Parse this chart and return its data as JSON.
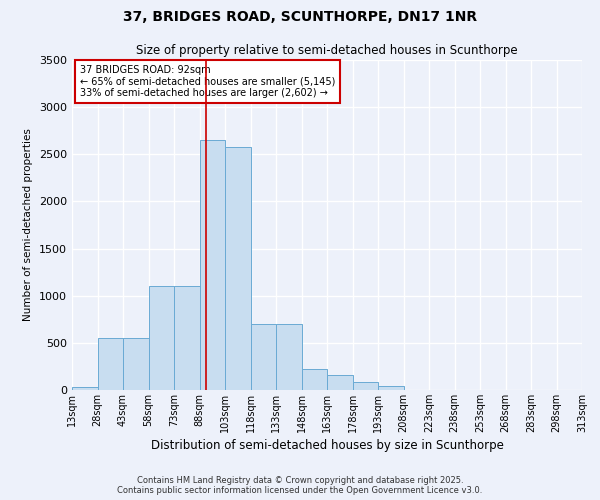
{
  "title1": "37, BRIDGES ROAD, SCUNTHORPE, DN17 1NR",
  "title2": "Size of property relative to semi-detached houses in Scunthorpe",
  "xlabel": "Distribution of semi-detached houses by size in Scunthorpe",
  "ylabel": "Number of semi-detached properties",
  "annotation_line1": "37 BRIDGES ROAD: 92sqm",
  "annotation_line2": "← 65% of semi-detached houses are smaller (5,145)",
  "annotation_line3": "33% of semi-detached houses are larger (2,602) →",
  "property_size_x": 92,
  "bin_labels": [
    "13sqm",
    "28sqm",
    "43sqm",
    "58sqm",
    "73sqm",
    "88sqm",
    "103sqm",
    "118sqm",
    "133sqm",
    "148sqm",
    "163sqm",
    "178sqm",
    "193sqm",
    "208sqm",
    "223sqm",
    "238sqm",
    "253sqm",
    "268sqm",
    "283sqm",
    "298sqm",
    "313sqm"
  ],
  "bin_left_edges": [
    13,
    28,
    43,
    58,
    73,
    88,
    103,
    118,
    133,
    148,
    163,
    178,
    193,
    208,
    223,
    238,
    253,
    268,
    283,
    298
  ],
  "bin_width": 15,
  "bin_counts": [
    30,
    550,
    550,
    1100,
    1100,
    2650,
    2580,
    700,
    700,
    220,
    160,
    80,
    40,
    0,
    0,
    0,
    0,
    0,
    0,
    0
  ],
  "bar_color": "#c8ddf0",
  "bar_edge_color": "#6aaad4",
  "vline_color": "#cc0000",
  "background_color": "#edf1fa",
  "grid_color": "#ffffff",
  "ylim": [
    0,
    3500
  ],
  "yticks": [
    0,
    500,
    1000,
    1500,
    2000,
    2500,
    3000,
    3500
  ],
  "xlim_left": 13,
  "xlim_right": 313,
  "footer": "Contains HM Land Registry data © Crown copyright and database right 2025.\nContains public sector information licensed under the Open Government Licence v3.0."
}
